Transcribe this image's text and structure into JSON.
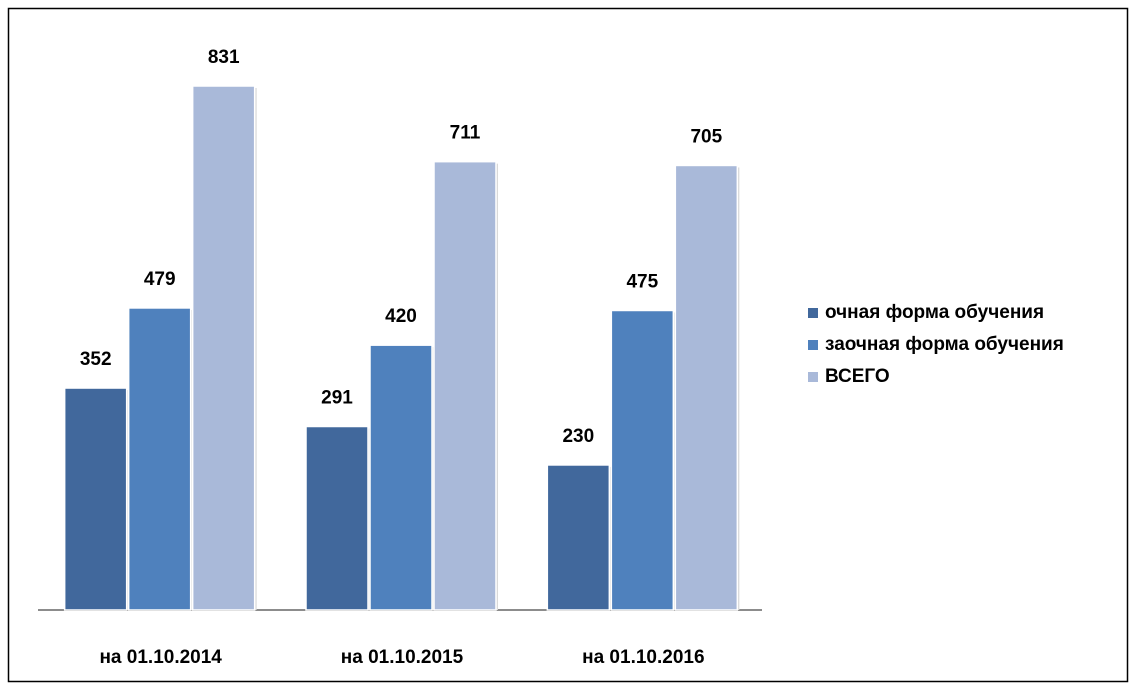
{
  "chart_data": {
    "type": "bar",
    "categories": [
      "на 01.10.2014",
      "на 01.10.2015",
      "на 01.10.2016"
    ],
    "series": [
      {
        "name": "очная форма обучения",
        "color": "#41689c",
        "values": [
          352,
          291,
          230
        ]
      },
      {
        "name": "заочная форма обучения",
        "color": "#4f81bd",
        "values": [
          479,
          420,
          475
        ]
      },
      {
        "name": "ВСЕГО",
        "color": "#a9b9d9",
        "values": [
          831,
          711,
          705
        ]
      }
    ],
    "legend": "right"
  }
}
